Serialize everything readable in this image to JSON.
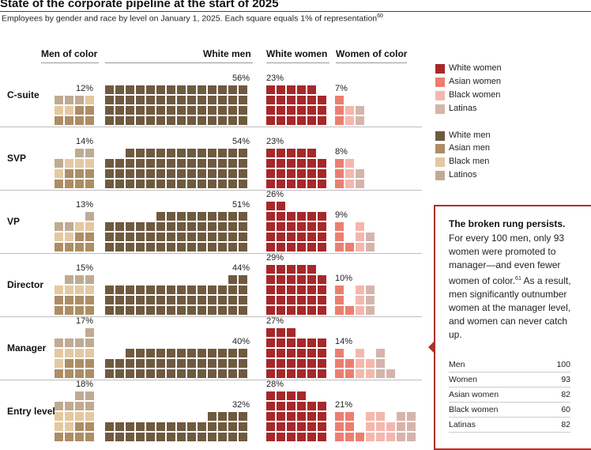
{
  "title": "State of the corporate pipeline at the start of 2025",
  "subtitle": "Employees by gender and race by level on January 1, 2025. Each square equals 1% of representation",
  "subtitle_footnote": "60",
  "colors": {
    "white_women": "#a6282a",
    "asian_women": "#ec7e70",
    "black_women": "#f4b7ad",
    "latinas": "#d5b4ab",
    "white_men": "#6e5a3f",
    "asian_men": "#ad8d65",
    "black_men": "#e4c8a1",
    "latinos": "#bfab93",
    "accent": "#b0302b"
  },
  "chart_data": {
    "type": "waffle",
    "unit": "Each square equals 1% of representation",
    "column_headers": [
      "Men of color",
      "White men",
      "White women",
      "Women of color"
    ],
    "groups": [
      "Men of color",
      "White men",
      "White women",
      "Women of color"
    ],
    "subgroups": {
      "Men of color": [
        "Asian men",
        "Black men",
        "Latinos"
      ],
      "Women of color": [
        "Asian women",
        "Black women",
        "Latinas"
      ]
    },
    "levels": [
      {
        "name": "C-suite",
        "men_of_color": 12,
        "white_men": 56,
        "white_women": 23,
        "women_of_color": 7,
        "moc_breakdown": {
          "asian_men": 6,
          "black_men": 3,
          "latinos": 3
        },
        "woc_breakdown": {
          "asian_women": 3,
          "black_women": 2,
          "latinas": 2
        }
      },
      {
        "name": "SVP",
        "men_of_color": 14,
        "white_men": 54,
        "white_women": 23,
        "women_of_color": 8,
        "moc_breakdown": {
          "asian_men": 7,
          "black_men": 4,
          "latinos": 3
        },
        "woc_breakdown": {
          "asian_women": 3,
          "black_women": 3,
          "latinas": 2
        }
      },
      {
        "name": "VP",
        "men_of_color": 13,
        "white_men": 51,
        "white_women": 26,
        "women_of_color": 9,
        "moc_breakdown": {
          "asian_men": 6,
          "black_men": 4,
          "latinos": 3
        },
        "woc_breakdown": {
          "asian_women": 4,
          "black_women": 3,
          "latinas": 2
        }
      },
      {
        "name": "Director",
        "men_of_color": 15,
        "white_men": 44,
        "white_women": 29,
        "women_of_color": 10,
        "moc_breakdown": {
          "asian_men": 8,
          "black_men": 4,
          "latinos": 3
        },
        "woc_breakdown": {
          "asian_women": 4,
          "black_women": 3,
          "latinas": 3
        }
      },
      {
        "name": "Manager",
        "men_of_color": 17,
        "white_men": 40,
        "white_women": 27,
        "women_of_color": 14,
        "moc_breakdown": {
          "asian_men": 7,
          "black_men": 5,
          "latinos": 5
        },
        "woc_breakdown": {
          "asian_women": 5,
          "black_women": 5,
          "latinas": 4
        }
      },
      {
        "name": "Entry level",
        "men_of_color": 18,
        "white_men": 32,
        "white_women": 28,
        "women_of_color": 21,
        "moc_breakdown": {
          "asian_men": 6,
          "black_men": 6,
          "latinos": 6
        },
        "woc_breakdown": {
          "asian_women": 7,
          "black_women": 8,
          "latinas": 6
        }
      }
    ],
    "legend": {
      "women": [
        "White women",
        "Asian women",
        "Black women",
        "Latinas"
      ],
      "men": [
        "White men",
        "Asian men",
        "Black men",
        "Latinos"
      ]
    }
  },
  "callout": {
    "heading": "The broken rung persists.",
    "body": "For every 100 men, only 93 women were promoted to manager—and even fewer women of color.",
    "footnote": "61",
    "body2": " As a result, men significantly outnumber women at the manager level, and women can never catch up.",
    "table": [
      {
        "label": "Men",
        "value": "100"
      },
      {
        "label": "Women",
        "value": "93"
      },
      {
        "label": "Asian women",
        "value": "82"
      },
      {
        "label": "Black women",
        "value": "60"
      },
      {
        "label": "Latinas",
        "value": "82"
      }
    ]
  }
}
